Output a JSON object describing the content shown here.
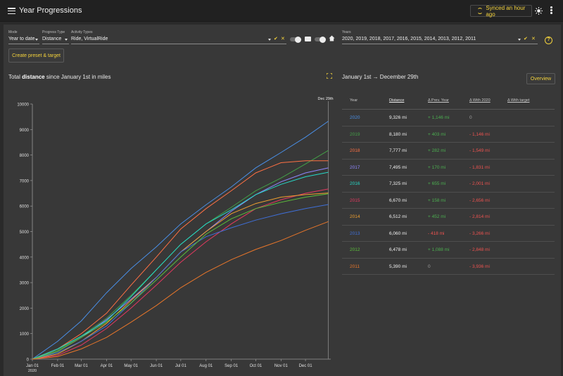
{
  "app": {
    "title": "Year Progressions",
    "sync_label": "Synced an hour ago"
  },
  "filters": {
    "mode": {
      "label": "Mode",
      "value": "Year to date"
    },
    "progress_type": {
      "label": "Progress Type",
      "value": "Distance"
    },
    "activity_types": {
      "label": "Activity Types",
      "value": "Ride, VirtualRide"
    },
    "years": {
      "label": "Years",
      "value": "2020, 2019, 2018, 2017, 2016, 2015, 2014, 2013, 2012, 2011"
    },
    "help": "?"
  },
  "preset_button": "Create preset & target",
  "chart_header": {
    "prefix": "Total",
    "metric": "distance",
    "suffix": "since January 1st in miles"
  },
  "range": {
    "text": "January 1st → December 29th",
    "overview_label": "Overview"
  },
  "table": {
    "headers": {
      "year": "Year",
      "distance": "Distance",
      "prev": "Δ Prev. Year",
      "with2020": "Δ With 2020",
      "target": "Δ With target"
    },
    "rows": [
      {
        "year": "2020",
        "color": "#4a8fe7",
        "distance": "9,326 mi",
        "prev": "+ 1,146 mi",
        "prev_sign": "pos",
        "with2020": "0",
        "with_sign": "muted"
      },
      {
        "year": "2019",
        "color": "#43a047",
        "distance": "8,180 mi",
        "prev": "+ 403 mi",
        "prev_sign": "pos",
        "with2020": "- 1,146 mi",
        "with_sign": "neg"
      },
      {
        "year": "2018",
        "color": "#ff7043",
        "distance": "7,777 mi",
        "prev": "+ 282 mi",
        "prev_sign": "pos",
        "with2020": "- 1,549 mi",
        "with_sign": "neg"
      },
      {
        "year": "2017",
        "color": "#8f86ff",
        "distance": "7,495 mi",
        "prev": "+ 170 mi",
        "prev_sign": "pos",
        "with2020": "- 1,831 mi",
        "with_sign": "neg"
      },
      {
        "year": "2016",
        "color": "#26d9c7",
        "distance": "7,325 mi",
        "prev": "+ 655 mi",
        "prev_sign": "pos",
        "with2020": "- 2,001 mi",
        "with_sign": "neg"
      },
      {
        "year": "2015",
        "color": "#e53960",
        "distance": "6,670 mi",
        "prev": "+ 158 mi",
        "prev_sign": "pos",
        "with2020": "- 2,656 mi",
        "with_sign": "neg"
      },
      {
        "year": "2014",
        "color": "#f0a030",
        "distance": "6,512 mi",
        "prev": "+ 452 mi",
        "prev_sign": "pos",
        "with2020": "- 2,814 mi",
        "with_sign": "neg"
      },
      {
        "year": "2013",
        "color": "#3f6fd8",
        "distance": "6,060 mi",
        "prev": "- 418 mi",
        "prev_sign": "neg",
        "with2020": "- 3,266 mi",
        "with_sign": "neg"
      },
      {
        "year": "2012",
        "color": "#5cbf3a",
        "distance": "6,478 mi",
        "prev": "+ 1,088 mi",
        "prev_sign": "pos",
        "with2020": "- 2,848 mi",
        "with_sign": "neg"
      },
      {
        "year": "2011",
        "color": "#e8762a",
        "distance": "5,390 mi",
        "prev": "0",
        "prev_sign": "muted",
        "with2020": "- 3,936 mi",
        "with_sign": "neg"
      }
    ]
  },
  "chart_data": {
    "type": "line",
    "ylim": [
      0,
      10000
    ],
    "yticks": [
      0,
      1000,
      2000,
      3000,
      4000,
      5000,
      6000,
      7000,
      8000,
      9000,
      10000
    ],
    "x_tick_labels": [
      "Jan 01",
      "Feb 01",
      "Mar 01",
      "Apr 01",
      "May 01",
      "Jun 01",
      "Jul 01",
      "Aug 01",
      "Sep 01",
      "Oct 01",
      "Nov 01",
      "Dec 01"
    ],
    "x_tick_days": [
      0,
      31,
      60,
      91,
      121,
      152,
      182,
      213,
      244,
      274,
      305,
      335
    ],
    "x_year_label": "2020",
    "xlim_days": [
      0,
      366
    ],
    "marker_label": "Dec 29th",
    "marker_day": 363,
    "series": [
      {
        "name": "2020",
        "color": "#4a8fe7",
        "x": [
          0,
          31,
          60,
          91,
          121,
          152,
          182,
          213,
          244,
          274,
          305,
          335,
          363
        ],
        "y": [
          0,
          700,
          1500,
          2600,
          3550,
          4400,
          5300,
          6050,
          6750,
          7500,
          8100,
          8700,
          9326
        ]
      },
      {
        "name": "2019",
        "color": "#43a047",
        "x": [
          0,
          31,
          60,
          91,
          121,
          152,
          182,
          213,
          244,
          274,
          305,
          335,
          363
        ],
        "y": [
          0,
          350,
          900,
          1600,
          2500,
          3500,
          4500,
          5300,
          5950,
          6600,
          7100,
          7650,
          8180
        ]
      },
      {
        "name": "2018",
        "color": "#ff7043",
        "x": [
          0,
          31,
          60,
          91,
          121,
          152,
          182,
          213,
          244,
          274,
          305,
          335,
          363
        ],
        "y": [
          0,
          400,
          1000,
          1800,
          2900,
          4000,
          5100,
          5900,
          6600,
          7300,
          7700,
          7777,
          7777
        ]
      },
      {
        "name": "2017",
        "color": "#8f86ff",
        "x": [
          0,
          31,
          60,
          91,
          121,
          152,
          182,
          213,
          244,
          274,
          305,
          335,
          363
        ],
        "y": [
          0,
          300,
          850,
          1550,
          2350,
          3200,
          4200,
          5000,
          5800,
          6450,
          6950,
          7300,
          7495
        ]
      },
      {
        "name": "2016",
        "color": "#26d9c7",
        "x": [
          0,
          31,
          60,
          91,
          121,
          152,
          182,
          213,
          244,
          274,
          305,
          335,
          363
        ],
        "y": [
          0,
          400,
          900,
          1500,
          2450,
          3500,
          4500,
          5300,
          5850,
          6450,
          6850,
          7150,
          7325
        ]
      },
      {
        "name": "2015",
        "color": "#e53960",
        "x": [
          0,
          31,
          60,
          91,
          121,
          152,
          182,
          213,
          244,
          274,
          305,
          335,
          363
        ],
        "y": [
          0,
          150,
          550,
          1200,
          2000,
          2900,
          3800,
          4600,
          5300,
          5900,
          6250,
          6500,
          6670
        ]
      },
      {
        "name": "2014",
        "color": "#f0a030",
        "x": [
          0,
          31,
          60,
          91,
          121,
          152,
          182,
          213,
          244,
          274,
          305,
          335,
          363
        ],
        "y": [
          0,
          200,
          700,
          1400,
          2300,
          3200,
          4200,
          5000,
          5700,
          6100,
          6350,
          6450,
          6512
        ]
      },
      {
        "name": "2013",
        "color": "#3f6fd8",
        "x": [
          0,
          31,
          60,
          91,
          121,
          152,
          182,
          213,
          244,
          274,
          305,
          335,
          363
        ],
        "y": [
          0,
          250,
          700,
          1300,
          2200,
          3200,
          4200,
          4800,
          5150,
          5450,
          5700,
          5900,
          6060
        ]
      },
      {
        "name": "2012",
        "color": "#5cbf3a",
        "x": [
          0,
          31,
          60,
          91,
          121,
          152,
          182,
          213,
          244,
          274,
          305,
          335,
          363
        ],
        "y": [
          0,
          300,
          850,
          1450,
          2200,
          3100,
          4000,
          4900,
          5500,
          5900,
          6150,
          6350,
          6478
        ]
      },
      {
        "name": "2011",
        "color": "#e8762a",
        "x": [
          0,
          31,
          60,
          91,
          121,
          152,
          182,
          213,
          244,
          274,
          305,
          335,
          363
        ],
        "y": [
          0,
          100,
          400,
          850,
          1450,
          2100,
          2800,
          3400,
          3900,
          4300,
          4650,
          5050,
          5390
        ]
      }
    ]
  }
}
